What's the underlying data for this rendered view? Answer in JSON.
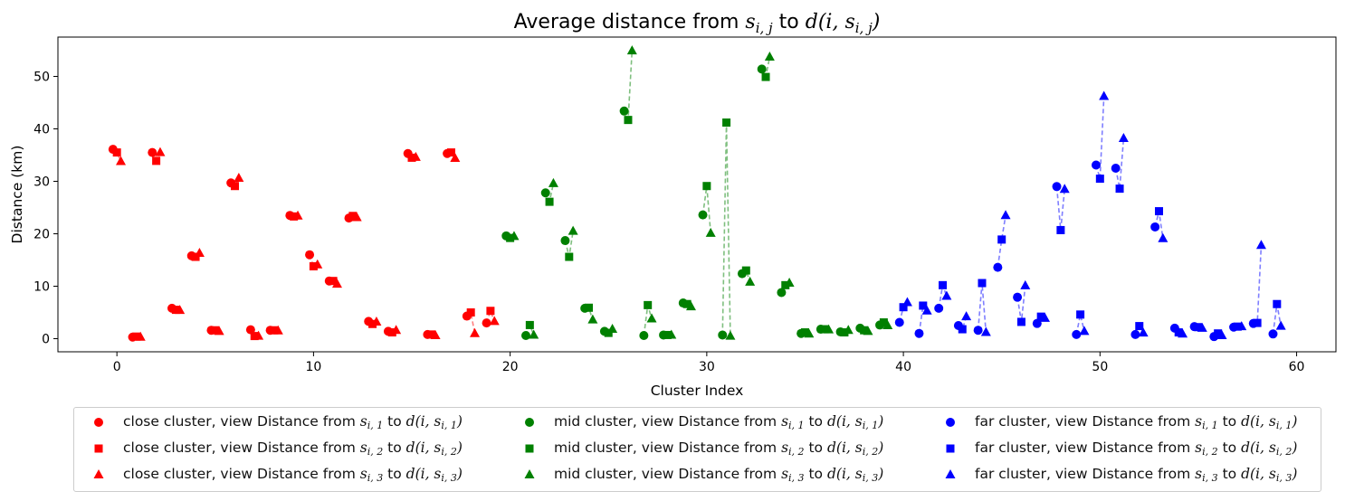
{
  "chart_data": {
    "type": "scatter",
    "title": {
      "prefix": "Average distance from ",
      "var1": "s",
      "var1_sub": "i, j",
      "middle": " to ",
      "expr": "d(i, s",
      "expr_sub": "i, j",
      "suffix": ")"
    },
    "xlabel": "Cluster Index",
    "ylabel": "Distance (km)",
    "xlim": [
      -3,
      62
    ],
    "ylim": [
      -2.5,
      57.5
    ],
    "xticks": [
      0,
      10,
      20,
      30,
      40,
      50,
      60
    ],
    "yticks": [
      0,
      10,
      20,
      30,
      40,
      50
    ],
    "grid": false,
    "legend_position": "bottom",
    "legend_columns": 3,
    "offsets": [
      -0.2,
      0,
      0.2
    ],
    "series": [
      {
        "name": "close",
        "color": "#ff0000",
        "start": 0,
        "values": [
          [
            36.1,
            35.5,
            33.8
          ],
          [
            0.3,
            0.4,
            0.3
          ],
          [
            35.5,
            33.9,
            35.5
          ],
          [
            5.8,
            5.5,
            5.4
          ],
          [
            15.8,
            15.6,
            16.3
          ],
          [
            1.6,
            1.6,
            1.4
          ],
          [
            29.7,
            29.1,
            30.6
          ],
          [
            1.7,
            0.5,
            0.5
          ],
          [
            1.6,
            1.6,
            1.5
          ],
          [
            23.5,
            23.3,
            23.4
          ],
          [
            16.0,
            13.8,
            14.1
          ],
          [
            11.0,
            11.0,
            10.4
          ],
          [
            23.0,
            23.4,
            23.1
          ],
          [
            3.3,
            2.8,
            3.2
          ],
          [
            1.4,
            1.2,
            1.6
          ],
          [
            35.3,
            34.5,
            34.6
          ],
          [
            0.8,
            0.8,
            0.6
          ],
          [
            35.3,
            35.5,
            34.4
          ],
          [
            4.3,
            5.0,
            1.0
          ],
          [
            3.0,
            5.3,
            3.3
          ]
        ]
      },
      {
        "name": "mid",
        "color": "#008000",
        "start": 20,
        "values": [
          [
            19.6,
            19.2,
            19.5
          ],
          [
            0.6,
            2.6,
            0.7
          ],
          [
            27.8,
            26.1,
            29.6
          ],
          [
            18.7,
            15.6,
            20.5
          ],
          [
            5.8,
            5.9,
            3.6
          ],
          [
            1.4,
            1.1,
            1.8
          ],
          [
            43.4,
            41.7,
            54.9
          ],
          [
            0.6,
            6.4,
            3.8
          ],
          [
            0.7,
            0.7,
            0.7
          ],
          [
            6.8,
            6.6,
            6.1
          ],
          [
            23.6,
            29.1,
            20.1
          ],
          [
            0.7,
            41.2,
            0.5
          ],
          [
            12.4,
            13.0,
            10.8
          ],
          [
            51.4,
            49.9,
            53.7
          ],
          [
            8.8,
            10.2,
            10.6
          ],
          [
            1.0,
            1.2,
            0.9
          ],
          [
            1.8,
            1.8,
            1.7
          ],
          [
            1.3,
            1.2,
            1.6
          ],
          [
            2.0,
            1.6,
            1.4
          ],
          [
            2.6,
            3.1,
            2.5
          ]
        ]
      },
      {
        "name": "far",
        "color": "#0000ff",
        "start": 40,
        "values": [
          [
            3.1,
            6.0,
            6.9
          ],
          [
            1.0,
            6.3,
            5.3
          ],
          [
            5.8,
            10.2,
            8.1
          ],
          [
            2.5,
            1.8,
            4.2
          ],
          [
            1.6,
            10.6,
            1.2
          ],
          [
            13.6,
            18.9,
            23.5
          ],
          [
            7.9,
            3.2,
            10.1
          ],
          [
            2.9,
            4.2,
            3.9
          ],
          [
            29.0,
            20.7,
            28.5
          ],
          [
            0.8,
            4.6,
            1.4
          ],
          [
            33.1,
            30.5,
            46.2
          ],
          [
            32.5,
            28.6,
            38.2
          ],
          [
            0.8,
            2.4,
            1.1
          ],
          [
            21.3,
            24.3,
            19.1
          ],
          [
            2.0,
            1.2,
            0.9
          ],
          [
            2.3,
            2.2,
            2.0
          ],
          [
            0.4,
            1.0,
            0.6
          ],
          [
            2.2,
            2.3,
            2.3
          ],
          [
            2.9,
            3.0,
            17.8
          ],
          [
            0.9,
            6.6,
            2.4
          ]
        ]
      }
    ],
    "legend": [
      {
        "cluster": "close",
        "view": "1",
        "label_prefix": "close cluster, view Distance from "
      },
      {
        "cluster": "close",
        "view": "2",
        "label_prefix": "close cluster, view Distance from "
      },
      {
        "cluster": "close",
        "view": "3",
        "label_prefix": "close cluster, view Distance from "
      },
      {
        "cluster": "mid",
        "view": "1",
        "label_prefix": "mid cluster, view Distance from "
      },
      {
        "cluster": "mid",
        "view": "2",
        "label_prefix": "mid cluster, view Distance from "
      },
      {
        "cluster": "mid",
        "view": "3",
        "label_prefix": "mid cluster, view Distance from "
      },
      {
        "cluster": "far",
        "view": "1",
        "label_prefix": "far cluster, view Distance from "
      },
      {
        "cluster": "far",
        "view": "2",
        "label_prefix": "far cluster, view Distance from "
      },
      {
        "cluster": "far",
        "view": "3",
        "label_prefix": "far cluster, view Distance from "
      }
    ],
    "legend_text": {
      "var": "s",
      "sub_prefix": "i, ",
      "middle": " to ",
      "expr": "d(i, s",
      "suffix": ")"
    },
    "marker_names": [
      "circle",
      "square",
      "triangle"
    ]
  }
}
